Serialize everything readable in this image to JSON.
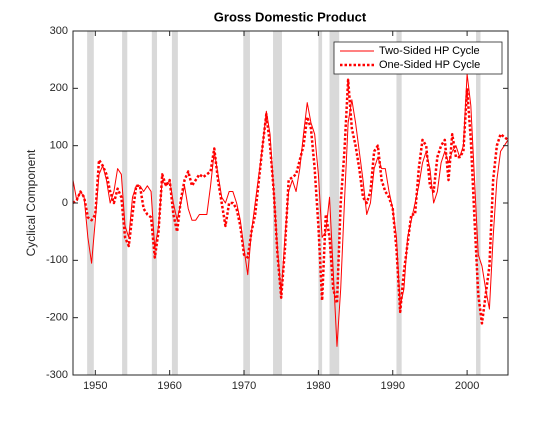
{
  "chart_data": {
    "type": "line",
    "title": "Gross Domestic Product",
    "ylabel": "Cyclical Component",
    "x": [
      1947,
      1947.5,
      1948,
      1948.5,
      1949,
      1949.5,
      1950,
      1950.5,
      1951,
      1951.5,
      1952,
      1952.5,
      1953,
      1953.5,
      1954,
      1954.5,
      1955,
      1955.5,
      1956,
      1956.5,
      1957,
      1957.5,
      1958,
      1958.5,
      1959,
      1959.5,
      1960,
      1960.5,
      1961,
      1961.5,
      1962,
      1962.5,
      1963,
      1963.5,
      1964,
      1964.5,
      1965,
      1965.5,
      1966,
      1966.5,
      1967,
      1967.5,
      1968,
      1968.5,
      1969,
      1969.5,
      1970,
      1970.5,
      1971,
      1971.5,
      1972,
      1972.5,
      1973,
      1973.5,
      1974,
      1974.5,
      1975,
      1975.5,
      1976,
      1976.5,
      1977,
      1977.5,
      1978,
      1978.5,
      1979,
      1979.5,
      1980,
      1980.5,
      1981,
      1981.5,
      1982,
      1982.5,
      1983,
      1983.5,
      1984,
      1984.5,
      1985,
      1985.5,
      1986,
      1986.5,
      1987,
      1987.5,
      1988,
      1988.5,
      1989,
      1989.5,
      1990,
      1990.5,
      1991,
      1991.5,
      1992,
      1992.5,
      1993,
      1993.5,
      1994,
      1994.5,
      1995,
      1995.5,
      1996,
      1996.5,
      1997,
      1997.5,
      1998,
      1998.5,
      1999,
      1999.5,
      2000,
      2000.5,
      2001,
      2001.5,
      2002,
      2002.5,
      2003,
      2003.5,
      2004,
      2004.5,
      2005,
      2005.5
    ],
    "series": [
      {
        "name": "Two-Sided HP Cycle",
        "color": "#ff0000",
        "line_style": "solid",
        "values": [
          40,
          5,
          20,
          10,
          -60,
          -105,
          -30,
          50,
          65,
          40,
          0,
          20,
          60,
          50,
          -40,
          -60,
          10,
          30,
          30,
          20,
          30,
          20,
          -80,
          -40,
          40,
          30,
          40,
          0,
          -30,
          0,
          30,
          -10,
          -30,
          -30,
          -20,
          -20,
          -20,
          30,
          90,
          50,
          10,
          0,
          20,
          20,
          0,
          -30,
          -80,
          -125,
          -50,
          0,
          50,
          100,
          160,
          120,
          20,
          -80,
          -160,
          -60,
          20,
          40,
          20,
          60,
          120,
          175,
          140,
          120,
          50,
          -60,
          -50,
          10,
          -120,
          -250,
          -150,
          0,
          140,
          180,
          140,
          90,
          40,
          -20,
          0,
          60,
          80,
          60,
          60,
          20,
          -10,
          -60,
          -180,
          -150,
          -60,
          -30,
          0,
          30,
          70,
          90,
          60,
          0,
          20,
          70,
          90,
          70,
          90,
          100,
          80,
          100,
          225,
          170,
          40,
          -90,
          -110,
          -150,
          -185,
          -60,
          40,
          90,
          100,
          110
        ]
      },
      {
        "name": "One-Sided HP Cycle",
        "color": "#ff0000",
        "line_style": "dotted",
        "values": [
          0,
          5,
          20,
          10,
          -25,
          -30,
          -20,
          75,
          65,
          50,
          20,
          0,
          25,
          10,
          -60,
          -75,
          -20,
          30,
          30,
          -10,
          -20,
          -25,
          -95,
          -50,
          50,
          30,
          40,
          -20,
          -50,
          5,
          40,
          55,
          30,
          40,
          50,
          45,
          50,
          55,
          95,
          40,
          0,
          -40,
          0,
          0,
          -10,
          -40,
          -90,
          -95,
          -50,
          -20,
          40,
          100,
          155,
          100,
          20,
          -90,
          -165,
          -80,
          40,
          45,
          50,
          75,
          100,
          150,
          130,
          60,
          -40,
          -170,
          -20,
          -60,
          -150,
          -175,
          0,
          90,
          215,
          130,
          100,
          60,
          10,
          0,
          20,
          90,
          100,
          40,
          20,
          10,
          -10,
          -80,
          -190,
          -120,
          -70,
          -20,
          -20,
          60,
          110,
          100,
          30,
          20,
          80,
          100,
          110,
          40,
          120,
          80,
          80,
          90,
          200,
          110,
          -30,
          -160,
          -210,
          -160,
          -110,
          40,
          100,
          120,
          115,
          110
        ]
      }
    ],
    "shaded_periods": [
      [
        1948.9,
        1949.8
      ],
      [
        1953.6,
        1954.3
      ],
      [
        1957.6,
        1958.3
      ],
      [
        1960.3,
        1961.1
      ],
      [
        1969.9,
        1970.8
      ],
      [
        1973.9,
        1975.1
      ],
      [
        1980.0,
        1980.5
      ],
      [
        1981.5,
        1982.8
      ],
      [
        1990.5,
        1991.2
      ],
      [
        2001.2,
        2001.8
      ]
    ],
    "shade_color": "#d9d9d9",
    "xlim": [
      1947,
      2005.5
    ],
    "xticks": [
      1950,
      1960,
      1970,
      1980,
      1990,
      2000
    ],
    "ylim": [
      -300,
      300
    ],
    "yticks": [
      -300,
      -200,
      -100,
      0,
      100,
      200,
      300
    ],
    "legend": "northeast"
  }
}
